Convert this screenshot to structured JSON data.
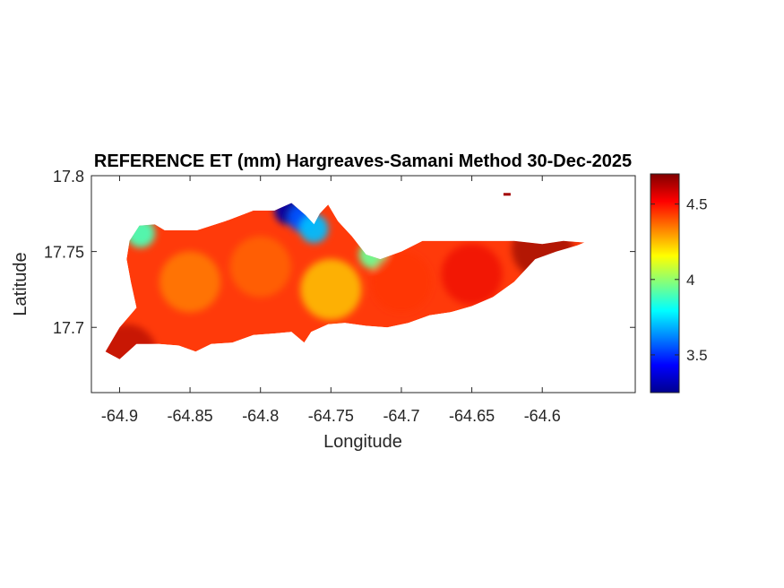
{
  "chart_data": {
    "type": "heatmap",
    "title": "REFERENCE ET (mm) Hargreaves-Samani Method  30-Dec-2025",
    "xlabel": "Longitude",
    "ylabel": "Latitude",
    "xlim": [
      -64.92,
      -64.534
    ],
    "ylim": [
      17.657,
      17.8
    ],
    "x_ticks": [
      -64.9,
      -64.85,
      -64.8,
      -64.75,
      -64.7,
      -64.65,
      -64.6
    ],
    "x_tick_labels": [
      "-64.9",
      "-64.85",
      "-64.8",
      "-64.75",
      "-64.7",
      "-64.65",
      "-64.6"
    ],
    "y_ticks": [
      17.7,
      17.75,
      17.8
    ],
    "y_tick_labels": [
      "17.7",
      "17.75",
      "17.8"
    ],
    "colorbar": {
      "colormap": "jet",
      "clim": [
        3.25,
        4.7
      ],
      "ticks": [
        3.5,
        4,
        4.5
      ],
      "tick_labels": [
        "3.5",
        "4",
        "4.5"
      ]
    },
    "grid": false,
    "region_outline_lonlat": [
      [
        -64.9,
        17.679
      ],
      [
        -64.888,
        17.689
      ],
      [
        -64.872,
        17.689
      ],
      [
        -64.858,
        17.688
      ],
      [
        -64.846,
        17.684
      ],
      [
        -64.835,
        17.689
      ],
      [
        -64.82,
        17.69
      ],
      [
        -64.805,
        17.695
      ],
      [
        -64.79,
        17.696
      ],
      [
        -64.778,
        17.697
      ],
      [
        -64.769,
        17.69
      ],
      [
        -64.764,
        17.697
      ],
      [
        -64.752,
        17.702
      ],
      [
        -64.74,
        17.703
      ],
      [
        -64.725,
        17.701
      ],
      [
        -64.71,
        17.7
      ],
      [
        -64.695,
        17.703
      ],
      [
        -64.68,
        17.708
      ],
      [
        -64.665,
        17.71
      ],
      [
        -64.65,
        17.714
      ],
      [
        -64.635,
        17.72
      ],
      [
        -64.62,
        17.73
      ],
      [
        -64.605,
        17.745
      ],
      [
        -64.59,
        17.75
      ],
      [
        -64.575,
        17.754
      ],
      [
        -64.57,
        17.756
      ],
      [
        -64.585,
        17.757
      ],
      [
        -64.6,
        17.755
      ],
      [
        -64.62,
        17.757
      ],
      [
        -64.64,
        17.757
      ],
      [
        -64.655,
        17.757
      ],
      [
        -64.67,
        17.757
      ],
      [
        -64.685,
        17.757
      ],
      [
        -64.7,
        17.75
      ],
      [
        -64.715,
        17.745
      ],
      [
        -64.725,
        17.748
      ],
      [
        -64.735,
        17.76
      ],
      [
        -64.745,
        17.77
      ],
      [
        -64.752,
        17.781
      ],
      [
        -64.758,
        17.775
      ],
      [
        -64.762,
        17.768
      ],
      [
        -64.768,
        17.774
      ],
      [
        -64.778,
        17.782
      ],
      [
        -64.79,
        17.777
      ],
      [
        -64.805,
        17.777
      ],
      [
        -64.825,
        17.77
      ],
      [
        -64.845,
        17.764
      ],
      [
        -64.868,
        17.764
      ],
      [
        -64.875,
        17.768
      ],
      [
        -64.886,
        17.767
      ],
      [
        -64.893,
        17.757
      ],
      [
        -64.895,
        17.745
      ],
      [
        -64.892,
        17.73
      ],
      [
        -64.888,
        17.713
      ],
      [
        -64.9,
        17.7
      ],
      [
        -64.91,
        17.684
      ]
    ],
    "et_samples": [
      {
        "lon": -64.885,
        "lat": 17.762,
        "et": 3.9
      },
      {
        "lon": -64.78,
        "lat": 17.777,
        "et": 3.3
      },
      {
        "lon": -64.77,
        "lat": 17.772,
        "et": 3.55
      },
      {
        "lon": -64.762,
        "lat": 17.765,
        "et": 3.7
      },
      {
        "lon": -64.72,
        "lat": 17.748,
        "et": 3.95
      },
      {
        "lon": -64.85,
        "lat": 17.73,
        "et": 4.3
      },
      {
        "lon": -64.8,
        "lat": 17.74,
        "et": 4.35
      },
      {
        "lon": -64.75,
        "lat": 17.725,
        "et": 4.15
      },
      {
        "lon": -64.7,
        "lat": 17.73,
        "et": 4.45
      },
      {
        "lon": -64.65,
        "lat": 17.735,
        "et": 4.55
      },
      {
        "lon": -64.6,
        "lat": 17.752,
        "et": 4.7
      },
      {
        "lon": -64.895,
        "lat": 17.682,
        "et": 4.65
      },
      {
        "lon": -64.625,
        "lat": 17.788,
        "et": 4.65
      }
    ],
    "islet": {
      "lon": -64.625,
      "lat": 17.788,
      "et": 4.65
    }
  }
}
